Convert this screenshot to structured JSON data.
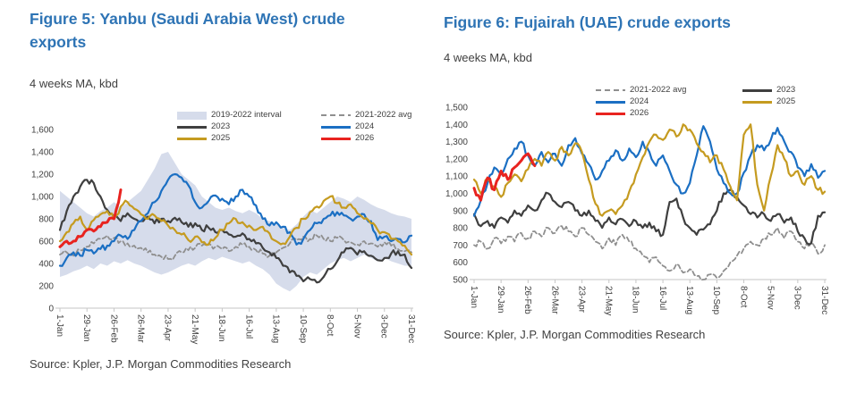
{
  "chart_data": [
    {
      "id": "yanbu",
      "type": "line",
      "title": "Figure 5: Yanbu (Saudi Arabia West) crude exports",
      "subtitle": "4 weeks MA, kbd",
      "source": "Source: Kpler, J.P. Morgan Commodities Research",
      "ylim": [
        0,
        1600
      ],
      "yticks": [
        0,
        200,
        400,
        600,
        800,
        1000,
        1200,
        1400,
        1600
      ],
      "xtick_labels": [
        "1-Jan",
        "29-Jan",
        "26-Feb",
        "26-Mar",
        "23-Apr",
        "21-May",
        "18-Jun",
        "16-Jul",
        "13-Aug",
        "10-Sep",
        "8-Oct",
        "5-Nov",
        "3-Dec",
        "31-Dec"
      ],
      "xtick_every": 4,
      "points_per_year": 53,
      "grid": false,
      "legend_position": "top-right, two columns, transparent",
      "band": {
        "name": "2019-2022 interval",
        "color": "#d6dceb",
        "low": [
          280,
          300,
          330,
          350,
          380,
          350,
          400,
          380,
          420,
          400,
          430,
          400,
          380,
          350,
          320,
          300,
          320,
          350,
          380,
          400,
          380,
          420,
          450,
          430,
          460,
          440,
          420,
          400,
          420,
          380,
          350,
          300,
          220,
          180,
          150,
          200,
          280,
          320,
          300,
          350,
          400,
          430,
          450,
          420,
          450,
          480,
          450,
          420,
          450,
          420,
          400,
          380,
          380
        ],
        "high": [
          1050,
          1000,
          950,
          900,
          850,
          820,
          870,
          900,
          950,
          900,
          950,
          1000,
          1050,
          1150,
          1250,
          1380,
          1400,
          1300,
          1200,
          1150,
          1100,
          1000,
          950,
          900,
          880,
          900,
          870,
          850,
          880,
          850,
          800,
          780,
          750,
          720,
          700,
          750,
          820,
          880,
          850,
          900,
          950,
          1000,
          980,
          950,
          1000,
          970,
          930,
          900,
          880,
          850,
          830,
          820,
          800
        ]
      },
      "series": [
        {
          "name": "2021-2022 avg",
          "color": "#8f8f8f",
          "style": "dashed",
          "values": [
            480,
            500,
            470,
            520,
            550,
            580,
            620,
            650,
            630,
            600,
            580,
            560,
            540,
            500,
            480,
            460,
            440,
            470,
            500,
            520,
            540,
            560,
            580,
            550,
            530,
            510,
            550,
            570,
            550,
            520,
            490,
            470,
            500,
            540,
            580,
            610,
            640,
            620,
            650,
            620,
            600,
            630,
            610,
            590,
            570,
            600,
            580,
            550,
            590,
            560,
            530,
            510,
            500
          ]
        },
        {
          "name": "2023",
          "color": "#3f3f3f",
          "style": "solid",
          "values": [
            700,
            870,
            1000,
            1090,
            1150,
            1120,
            1000,
            880,
            820,
            780,
            850,
            800,
            780,
            820,
            760,
            800,
            780,
            810,
            770,
            730,
            760,
            700,
            720,
            680,
            700,
            660,
            640,
            670,
            620,
            580,
            540,
            500,
            450,
            380,
            320,
            290,
            240,
            260,
            230,
            280,
            350,
            420,
            500,
            540,
            480,
            510,
            470,
            430,
            450,
            490,
            510,
            480,
            360
          ]
        },
        {
          "name": "2024",
          "color": "#1b6fc3",
          "style": "solid",
          "values": [
            380,
            450,
            500,
            470,
            520,
            490,
            530,
            560,
            600,
            650,
            620,
            700,
            780,
            850,
            950,
            1050,
            1150,
            1200,
            1170,
            1100,
            950,
            900,
            960,
            1010,
            980,
            930,
            1000,
            1060,
            1000,
            920,
            800,
            740,
            770,
            730,
            680,
            570,
            620,
            700,
            760,
            800,
            830,
            860,
            830,
            800,
            820,
            840,
            780,
            610,
            640,
            600,
            620,
            590,
            650
          ]
        },
        {
          "name": "2025",
          "color": "#c59b20",
          "style": "solid",
          "values": [
            600,
            680,
            760,
            820,
            700,
            790,
            840,
            870,
            800,
            910,
            950,
            890,
            840,
            800,
            830,
            780,
            740,
            700,
            660,
            610,
            640,
            590,
            570,
            630,
            700,
            760,
            800,
            770,
            740,
            700,
            730,
            670,
            600,
            580,
            640,
            720,
            800,
            860,
            910,
            960,
            1000,
            940,
            900,
            930,
            850,
            800,
            760,
            700,
            680,
            620,
            600,
            560,
            480
          ]
        },
        {
          "name": "2026",
          "color": "#e8231f",
          "style": "solid",
          "width": 3,
          "values": [
            550,
            600,
            600,
            640,
            700,
            690,
            730,
            770,
            800,
            1060
          ]
        }
      ],
      "legend_entries": [
        {
          "label": "2019-2022 interval",
          "swatch": "band",
          "color": "#d6dceb"
        },
        {
          "label": "2021-2022 avg",
          "swatch": "dash",
          "color": "#8f8f8f"
        },
        {
          "label": "2023",
          "swatch": "line",
          "color": "#3f3f3f"
        },
        {
          "label": "2024",
          "swatch": "line",
          "color": "#1b6fc3"
        },
        {
          "label": "2025",
          "swatch": "line",
          "color": "#c59b20"
        },
        {
          "label": "2026",
          "swatch": "line",
          "color": "#e8231f"
        }
      ]
    },
    {
      "id": "fujairah",
      "type": "line",
      "title": "Figure 6: Fujairah (UAE) crude exports",
      "subtitle": "4 weeks MA, kbd",
      "source": "Source: Kpler, J.P. Morgan Commodities Research",
      "ylim": [
        500,
        1500
      ],
      "yticks": [
        500,
        600,
        700,
        800,
        900,
        1000,
        1100,
        1200,
        1300,
        1400,
        1500
      ],
      "xtick_labels": [
        "1-Jan",
        "29-Jan",
        "26-Feb",
        "26-Mar",
        "23-Apr",
        "21-May",
        "18-Jun",
        "16-Jul",
        "13-Aug",
        "10-Sep",
        "8-Oct",
        "5-Nov",
        "3-Dec",
        "31-Dec"
      ],
      "xtick_every": 4,
      "points_per_year": 53,
      "grid": false,
      "legend_position": "top-right, two columns, transparent",
      "band": null,
      "series": [
        {
          "name": "2021-2022 avg",
          "color": "#8f8f8f",
          "style": "dashed",
          "values": [
            700,
            720,
            680,
            740,
            710,
            750,
            720,
            770,
            740,
            780,
            750,
            800,
            770,
            810,
            780,
            750,
            800,
            760,
            720,
            680,
            740,
            700,
            760,
            720,
            680,
            640,
            600,
            630,
            580,
            550,
            590,
            540,
            560,
            520,
            500,
            530,
            510,
            550,
            600,
            640,
            680,
            720,
            700,
            740,
            760,
            800,
            740,
            780,
            720,
            680,
            720,
            650,
            700
          ]
        },
        {
          "name": "2023",
          "color": "#3f3f3f",
          "style": "solid",
          "values": [
            880,
            810,
            840,
            800,
            860,
            830,
            900,
            870,
            930,
            900,
            960,
            1000,
            950,
            920,
            950,
            900,
            870,
            900,
            840,
            800,
            860,
            820,
            850,
            810,
            840,
            800,
            830,
            780,
            760,
            950,
            970,
            860,
            800,
            760,
            790,
            820,
            900,
            1000,
            1020,
            980,
            930,
            880,
            860,
            880,
            840,
            880,
            830,
            860,
            780,
            740,
            710,
            870,
            890
          ]
        },
        {
          "name": "2024",
          "color": "#1b6fc3",
          "style": "solid",
          "values": [
            870,
            960,
            1060,
            1150,
            1110,
            1200,
            1260,
            1300,
            1220,
            1160,
            1240,
            1180,
            1230,
            1160,
            1280,
            1320,
            1230,
            1170,
            1080,
            1130,
            1190,
            1250,
            1190,
            1260,
            1210,
            1300,
            1240,
            1160,
            1220,
            1130,
            1050,
            1000,
            1060,
            1220,
            1390,
            1300,
            1140,
            1060,
            1000,
            1000,
            1120,
            1220,
            1280,
            1250,
            1310,
            1380,
            1300,
            1240,
            1150,
            1100,
            1170,
            1090,
            1130
          ]
        },
        {
          "name": "2025",
          "color": "#c59b20",
          "style": "solid",
          "values": [
            1080,
            1000,
            1090,
            1040,
            980,
            1060,
            1110,
            1070,
            1140,
            1200,
            1160,
            1240,
            1190,
            1270,
            1220,
            1290,
            1240,
            1080,
            940,
            870,
            900,
            880,
            930,
            1010,
            1110,
            1210,
            1300,
            1340,
            1310,
            1370,
            1330,
            1400,
            1370,
            1290,
            1240,
            1180,
            1220,
            1140,
            1040,
            960,
            1340,
            1400,
            1050,
            900,
            1100,
            1280,
            1200,
            1100,
            1130,
            1050,
            1100,
            1020,
            1010
          ]
        },
        {
          "name": "2026",
          "color": "#e8231f",
          "style": "solid",
          "width": 3,
          "values": [
            1030,
            960,
            1090,
            1020,
            1130,
            1080,
            1150,
            1190,
            1230,
            1160
          ]
        }
      ],
      "legend_entries": [
        {
          "label": "2021-2022 avg",
          "swatch": "dash",
          "color": "#8f8f8f"
        },
        {
          "label": "2023",
          "swatch": "line",
          "color": "#3f3f3f"
        },
        {
          "label": "2024",
          "swatch": "line",
          "color": "#1b6fc3"
        },
        {
          "label": "2025",
          "swatch": "line",
          "color": "#c59b20"
        },
        {
          "label": "2026",
          "swatch": "line",
          "color": "#e8231f"
        }
      ]
    }
  ]
}
